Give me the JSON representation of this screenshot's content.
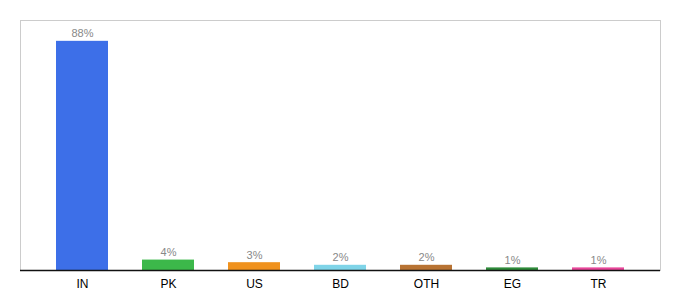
{
  "chart_data": {
    "type": "bar",
    "categories": [
      "IN",
      "PK",
      "US",
      "BD",
      "OTH",
      "EG",
      "TR"
    ],
    "values": [
      88,
      4,
      3,
      2,
      2,
      1,
      1
    ],
    "value_labels": [
      "88%",
      "4%",
      "3%",
      "2%",
      "2%",
      "1%",
      "1%"
    ],
    "colors": [
      "#3d6fe8",
      "#3cb84a",
      "#f0921e",
      "#7fd4e8",
      "#b87333",
      "#2e8b3a",
      "#e8469a"
    ],
    "ylim": [
      0,
      96
    ],
    "data_labels": true,
    "tick_labels": "x",
    "grid": false
  }
}
